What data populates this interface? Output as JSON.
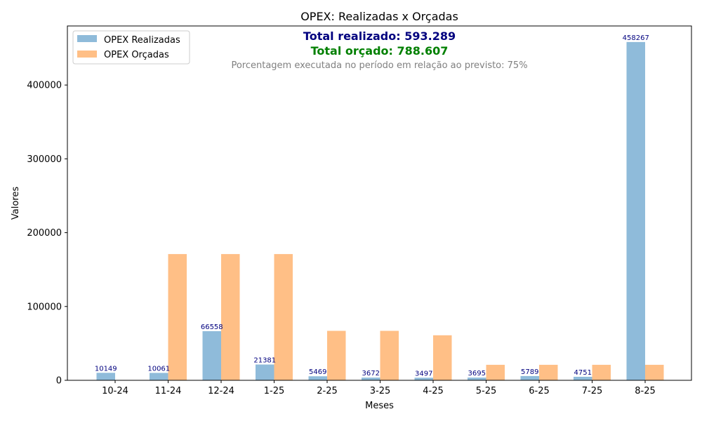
{
  "chart_data": {
    "type": "bar",
    "title": "OPEX: Realizadas x Orçadas",
    "xlabel": "Meses",
    "ylabel": "Valores",
    "categories": [
      "10-24",
      "11-24",
      "12-24",
      "1-25",
      "2-25",
      "3-25",
      "4-25",
      "5-25",
      "6-25",
      "7-25",
      "8-25"
    ],
    "series": [
      {
        "name": "OPEX Realizadas",
        "color": "#8fbbda",
        "values": [
          10149,
          10061,
          66558,
          21381,
          5469,
          3672,
          3497,
          3695,
          5789,
          4751,
          458267
        ],
        "labels": [
          "10149",
          "10061",
          "66558",
          "21381",
          "5469",
          "3672",
          "3497",
          "3695",
          "5789",
          "4751",
          "458267"
        ]
      },
      {
        "name": "OPEX Orçadas",
        "color": "#ffbf86",
        "values": [
          0,
          171000,
          171000,
          171000,
          67000,
          67000,
          61000,
          21000,
          21000,
          21000,
          21000
        ]
      }
    ],
    "ylim": [
      0,
      480000
    ],
    "yticks": [
      0,
      100000,
      200000,
      300000,
      400000
    ],
    "grid": false,
    "legend_position": "top-left",
    "label_color": "#00007f",
    "annotations": {
      "total_realizado": "Total realizado: 593.289",
      "total_realizado_color": "#00007f",
      "total_orcado": "Total orçado: 788.607",
      "total_orcado_color": "#008000",
      "percentage_text": "Porcentagem executada no período em relação ao previsto: 75%",
      "percentage_color": "#808080"
    }
  }
}
